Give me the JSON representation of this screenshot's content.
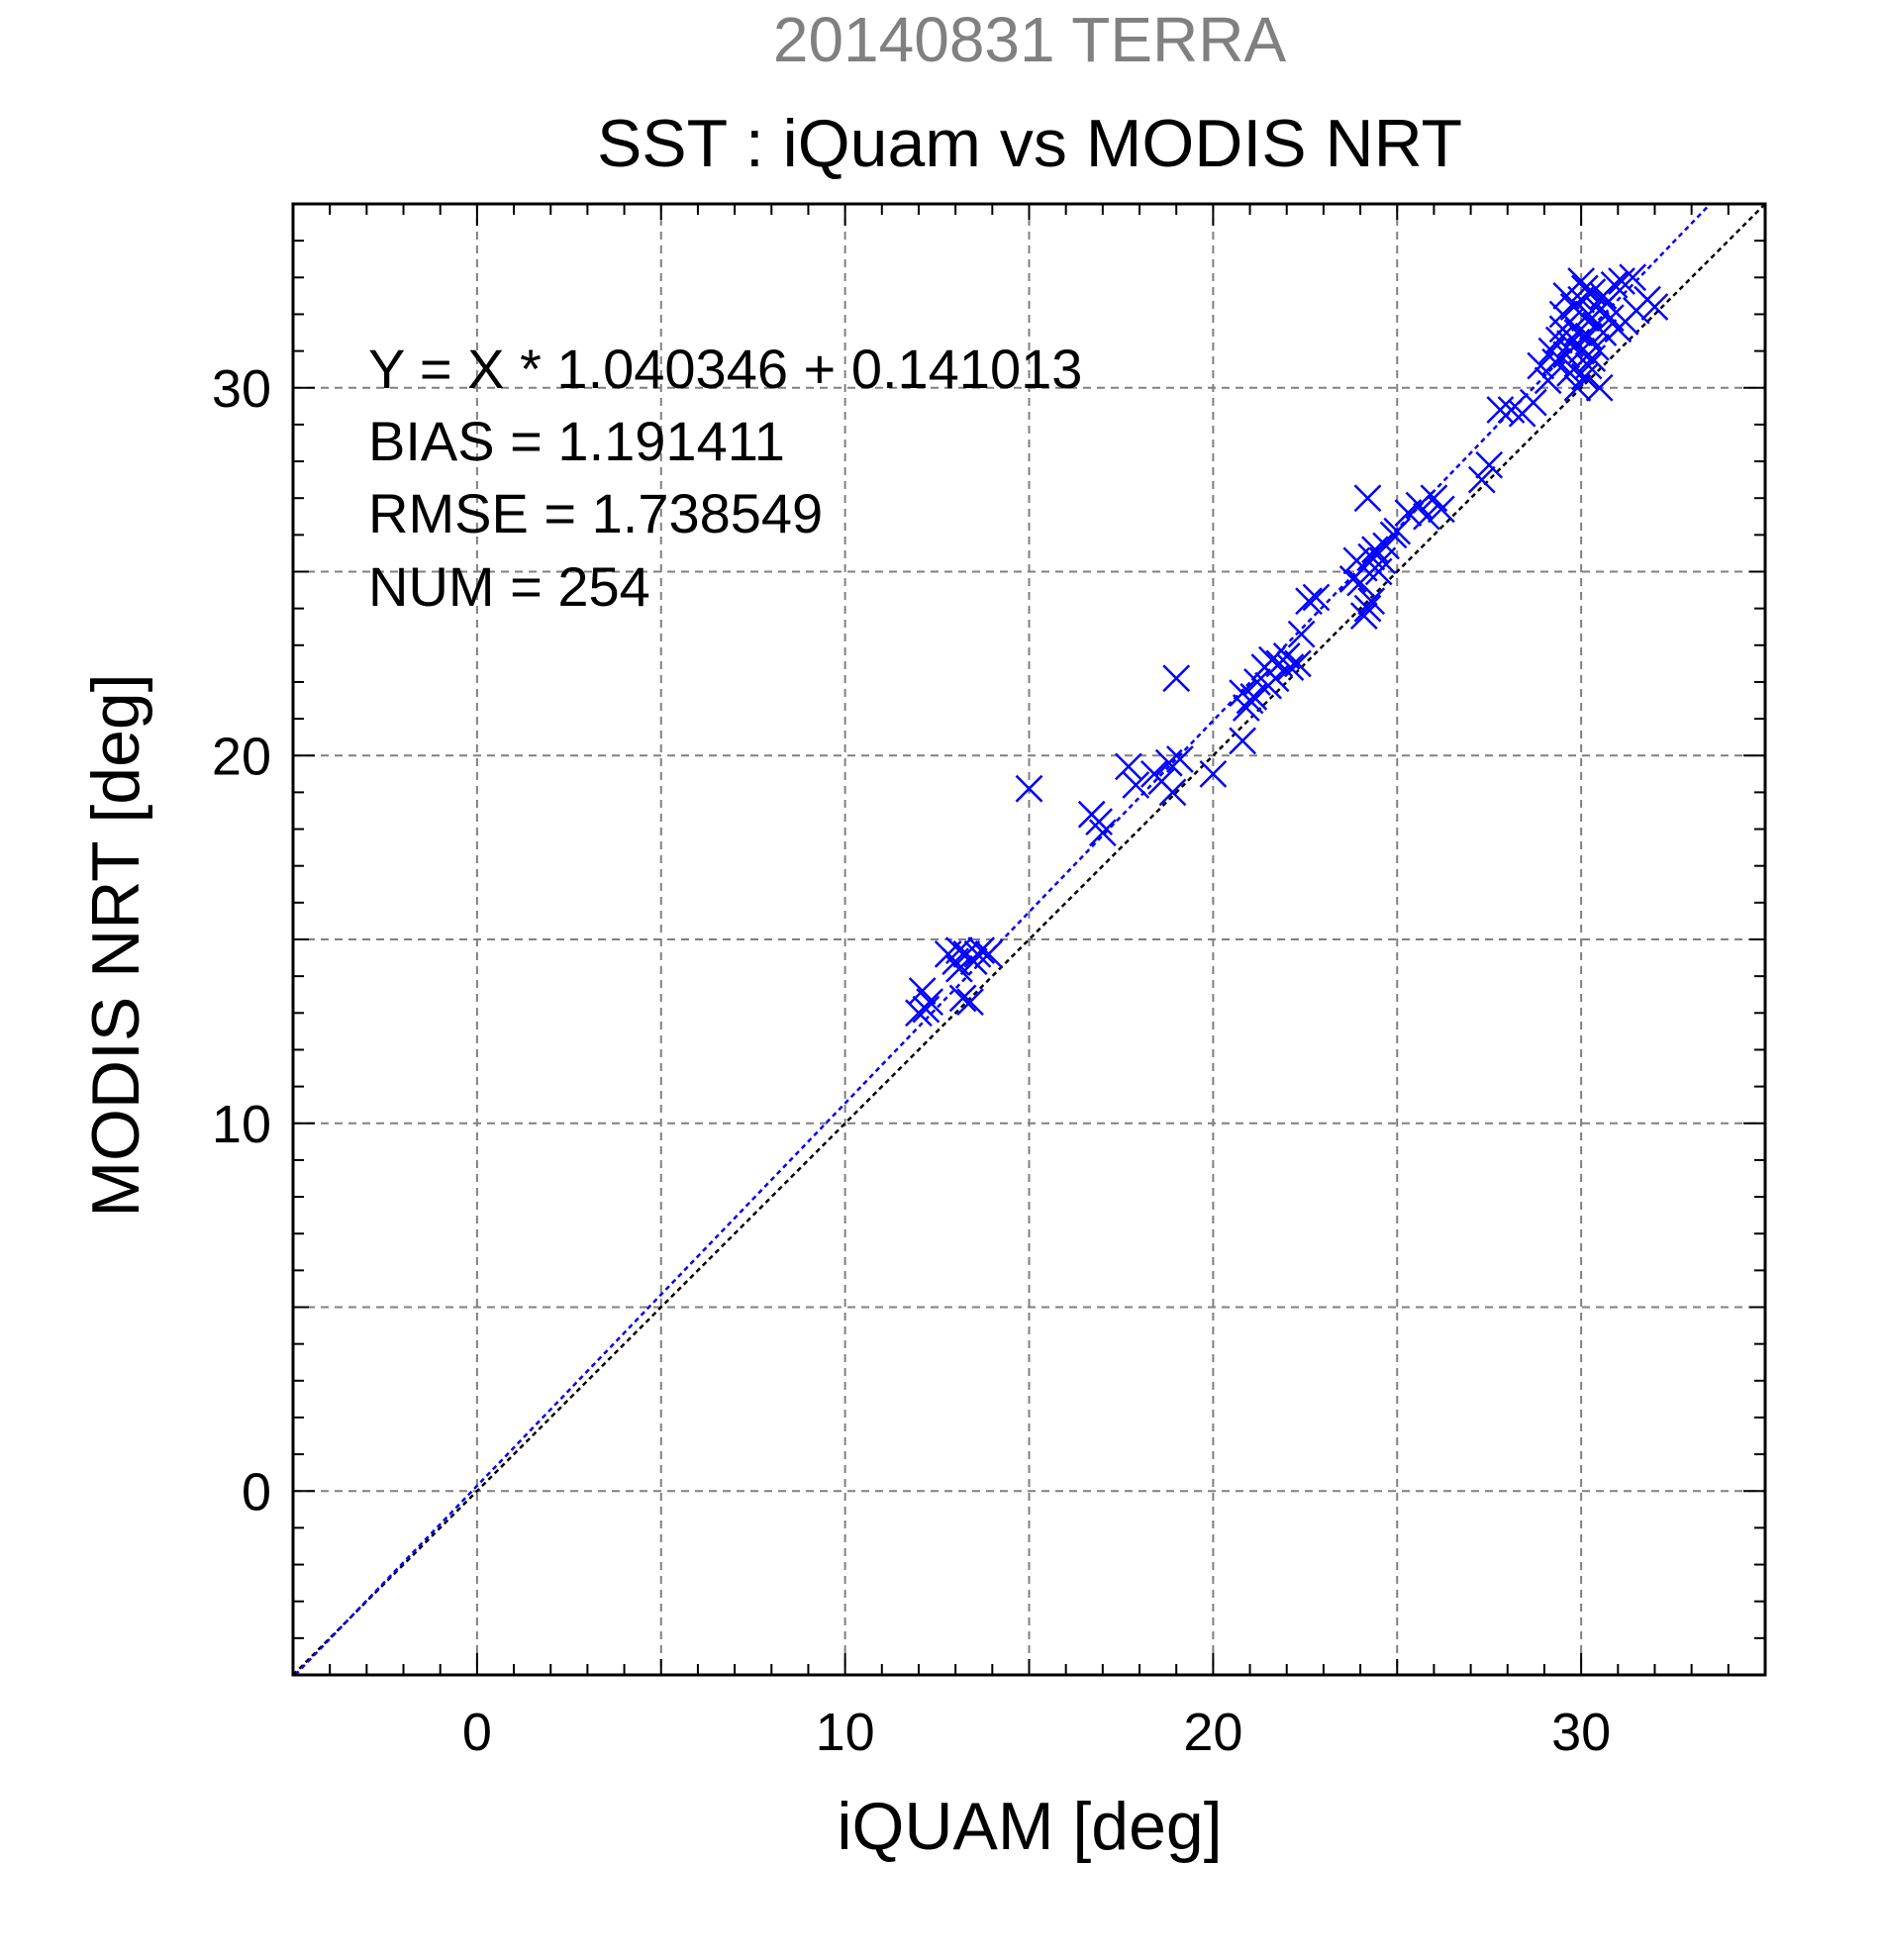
{
  "chart_data": {
    "type": "scatter",
    "title": "20140831 TERRA",
    "subtitle": "SST : iQuam vs MODIS NRT",
    "xlabel": "iQUAM [deg]",
    "ylabel": "MODIS NRT [deg]",
    "xlim": [
      -5,
      35
    ],
    "ylim": [
      -5,
      35
    ],
    "xticks": [
      0,
      10,
      20,
      30
    ],
    "yticks": [
      0,
      10,
      20,
      30
    ],
    "grid": true,
    "annotations": [
      "Y = X * 1.040346 + 0.141013",
      "BIAS = 1.191411",
      "RMSE = 1.738549",
      "NUM = 254"
    ],
    "fit_line": {
      "slope": 1.040346,
      "intercept": 0.141013
    },
    "identity_line": {
      "slope": 1,
      "intercept": 0
    },
    "colors": {
      "title": "#808080",
      "points": "#0000ff",
      "fit_line": "#0000ff",
      "identity_line": "#000000",
      "grid": "#808080",
      "text": "#000000"
    },
    "marker": "x",
    "series": [
      {
        "points": [
          [
            12.0,
            13.0
          ],
          [
            12.1,
            13.6
          ],
          [
            12.2,
            13.1
          ],
          [
            12.3,
            13.3
          ],
          [
            12.8,
            14.6
          ],
          [
            13.0,
            14.4
          ],
          [
            13.1,
            14.7
          ],
          [
            13.1,
            14.2
          ],
          [
            13.2,
            13.4
          ],
          [
            13.3,
            14.6
          ],
          [
            13.4,
            13.3
          ],
          [
            13.5,
            14.4
          ],
          [
            13.6,
            14.6
          ],
          [
            13.7,
            14.7
          ],
          [
            13.9,
            14.6
          ],
          [
            15.0,
            19.1
          ],
          [
            16.7,
            18.4
          ],
          [
            16.9,
            18.2
          ],
          [
            17.0,
            17.9
          ],
          [
            17.7,
            19.7
          ],
          [
            17.9,
            19.2
          ],
          [
            18.4,
            19.5
          ],
          [
            18.6,
            19.3
          ],
          [
            18.8,
            19.8
          ],
          [
            18.9,
            19.0
          ],
          [
            19.1,
            19.9
          ],
          [
            19.0,
            22.1
          ],
          [
            20.0,
            19.5
          ],
          [
            20.8,
            20.4
          ],
          [
            20.8,
            21.7
          ],
          [
            20.9,
            21.3
          ],
          [
            21.0,
            21.5
          ],
          [
            21.1,
            21.6
          ],
          [
            21.2,
            22.0
          ],
          [
            21.4,
            22.4
          ],
          [
            21.5,
            21.9
          ],
          [
            21.6,
            22.6
          ],
          [
            21.7,
            22.1
          ],
          [
            21.8,
            22.5
          ],
          [
            22.0,
            22.7
          ],
          [
            22.1,
            22.4
          ],
          [
            22.3,
            22.5
          ],
          [
            22.4,
            23.3
          ],
          [
            22.6,
            24.2
          ],
          [
            22.8,
            24.3
          ],
          [
            23.8,
            24.8
          ],
          [
            23.9,
            25.3
          ],
          [
            24.0,
            24.7
          ],
          [
            24.1,
            25.1
          ],
          [
            24.1,
            23.8
          ],
          [
            24.2,
            24.0
          ],
          [
            24.2,
            27.0
          ],
          [
            24.3,
            25.4
          ],
          [
            24.3,
            24.2
          ],
          [
            24.4,
            25.6
          ],
          [
            24.5,
            25.0
          ],
          [
            24.6,
            25.3
          ],
          [
            24.7,
            25.7
          ],
          [
            24.9,
            26.0
          ],
          [
            25.0,
            26.1
          ],
          [
            25.3,
            26.6
          ],
          [
            25.6,
            26.8
          ],
          [
            25.8,
            26.5
          ],
          [
            26.0,
            27.0
          ],
          [
            26.2,
            26.7
          ],
          [
            27.3,
            27.5
          ],
          [
            27.5,
            27.9
          ],
          [
            27.8,
            29.4
          ],
          [
            28.1,
            29.4
          ],
          [
            28.4,
            29.3
          ],
          [
            28.7,
            29.6
          ],
          [
            28.9,
            30.6
          ],
          [
            29.1,
            30.2
          ],
          [
            29.2,
            31.0
          ],
          [
            29.3,
            30.7
          ],
          [
            29.4,
            31.3
          ],
          [
            29.5,
            31.6
          ],
          [
            29.6,
            30.9
          ],
          [
            29.7,
            31.8
          ],
          [
            29.7,
            31.2
          ],
          [
            29.8,
            32.2
          ],
          [
            29.8,
            30.5
          ],
          [
            29.9,
            31.5
          ],
          [
            29.9,
            30.0
          ],
          [
            30.0,
            32.4
          ],
          [
            30.0,
            31.0
          ],
          [
            30.1,
            31.9
          ],
          [
            30.1,
            30.3
          ],
          [
            30.2,
            32.0
          ],
          [
            30.2,
            31.4
          ],
          [
            30.3,
            32.6
          ],
          [
            30.3,
            30.8
          ],
          [
            30.4,
            31.7
          ],
          [
            30.5,
            32.1
          ],
          [
            30.5,
            30.0
          ],
          [
            30.6,
            31.5
          ],
          [
            30.7,
            32.3
          ],
          [
            30.8,
            31.9
          ],
          [
            30.9,
            32.8
          ],
          [
            31.0,
            31.6
          ],
          [
            31.1,
            32.9
          ],
          [
            31.2,
            31.8
          ],
          [
            31.4,
            33.0
          ],
          [
            31.5,
            32.1
          ],
          [
            31.8,
            32.4
          ],
          [
            32.0,
            32.2
          ],
          [
            29.5,
            32.0
          ],
          [
            29.6,
            32.5
          ],
          [
            30.0,
            32.9
          ],
          [
            30.4,
            31.1
          ],
          [
            29.9,
            31.2
          ],
          [
            30.2,
            30.6
          ],
          [
            30.6,
            32.5
          ],
          [
            29.7,
            30.4
          ],
          [
            30.1,
            32.7
          ]
        ]
      }
    ]
  }
}
